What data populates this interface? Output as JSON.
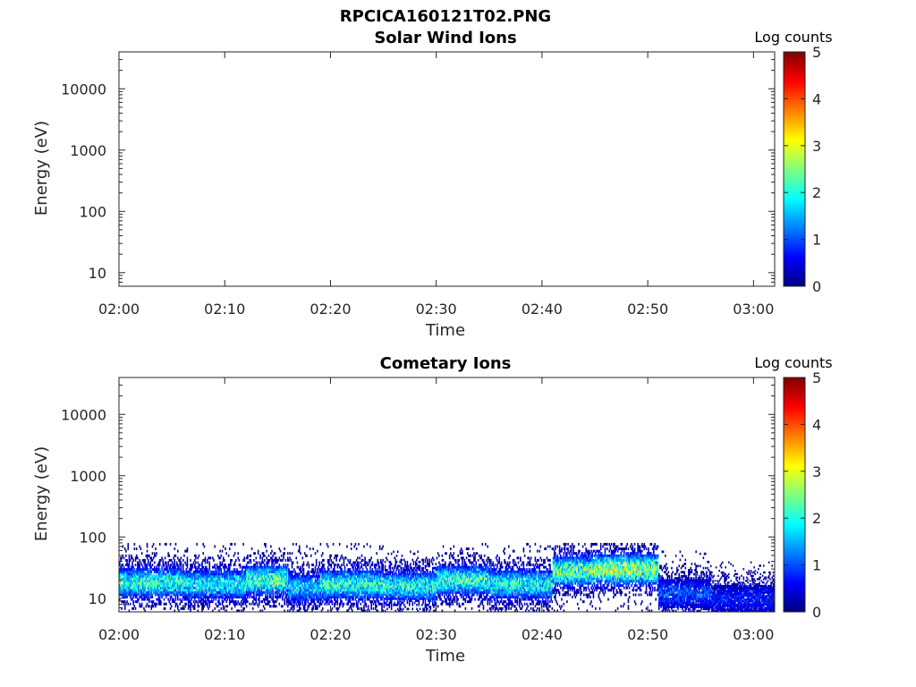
{
  "figure_title": "RPCICA160121T02.PNG",
  "chart_data": [
    {
      "type": "heatmap",
      "title": "Solar Wind Ions",
      "xlabel": "Time",
      "ylabel": "Energy (eV)",
      "x_ticks": [
        "02:00",
        "02:10",
        "02:20",
        "02:30",
        "02:40",
        "02:50",
        "03:00"
      ],
      "x_range_minutes": [
        0,
        62
      ],
      "y_scale": "log",
      "y_ticks": [
        10,
        100,
        1000,
        10000
      ],
      "y_tick_labels": [
        "10",
        "100",
        "1000",
        "10000"
      ],
      "y_range": [
        6,
        40000
      ],
      "colorbar": {
        "label": "Log counts",
        "ticks": [
          "0",
          "1",
          "2",
          "3",
          "4",
          "5"
        ],
        "range": [
          0,
          5
        ],
        "colormap": "jet"
      },
      "cells": []
    },
    {
      "type": "heatmap",
      "title": "Cometary Ions",
      "xlabel": "Time",
      "ylabel": "Energy (eV)",
      "x_ticks": [
        "02:00",
        "02:10",
        "02:20",
        "02:30",
        "02:40",
        "02:50",
        "03:00"
      ],
      "x_range_minutes": [
        0,
        62
      ],
      "y_scale": "log",
      "y_ticks": [
        10,
        100,
        1000,
        10000
      ],
      "y_tick_labels": [
        "10",
        "100",
        "1000",
        "10000"
      ],
      "y_range": [
        6,
        40000
      ],
      "colorbar": {
        "label": "Log counts",
        "ticks": [
          "0",
          "1",
          "2",
          "3",
          "4",
          "5"
        ],
        "range": [
          0,
          5
        ],
        "colormap": "jet"
      },
      "energy_band_eV": [
        6,
        80
      ],
      "activity_segments": [
        {
          "time_minutes": [
            0,
            6
          ],
          "peak_energy_eV": 18,
          "peak_log_counts": 2.2,
          "max_energy_eV": 80
        },
        {
          "time_minutes": [
            6,
            12
          ],
          "peak_energy_eV": 17,
          "peak_log_counts": 2.0,
          "max_energy_eV": 80
        },
        {
          "time_minutes": [
            12,
            16
          ],
          "peak_energy_eV": 20,
          "peak_log_counts": 2.4,
          "max_energy_eV": 80
        },
        {
          "time_minutes": [
            16,
            19
          ],
          "peak_energy_eV": 15,
          "peak_log_counts": 1.7,
          "max_energy_eV": 80
        },
        {
          "time_minutes": [
            19,
            25
          ],
          "peak_energy_eV": 17,
          "peak_log_counts": 2.2,
          "max_energy_eV": 80
        },
        {
          "time_minutes": [
            25,
            30
          ],
          "peak_energy_eV": 16,
          "peak_log_counts": 2.1,
          "max_energy_eV": 60
        },
        {
          "time_minutes": [
            30,
            35
          ],
          "peak_energy_eV": 20,
          "peak_log_counts": 2.3,
          "max_energy_eV": 80
        },
        {
          "time_minutes": [
            35,
            41
          ],
          "peak_energy_eV": 17,
          "peak_log_counts": 2.1,
          "max_energy_eV": 80
        },
        {
          "time_minutes": [
            41,
            45
          ],
          "peak_energy_eV": 28,
          "peak_log_counts": 2.6,
          "max_energy_eV": 80
        },
        {
          "time_minutes": [
            45,
            51
          ],
          "peak_energy_eV": 30,
          "peak_log_counts": 2.9,
          "max_energy_eV": 80
        },
        {
          "time_minutes": [
            51,
            56
          ],
          "peak_energy_eV": 12,
          "peak_log_counts": 1.1,
          "max_energy_eV": 60
        },
        {
          "time_minutes": [
            56,
            62
          ],
          "peak_energy_eV": 10,
          "peak_log_counts": 0.8,
          "max_energy_eV": 40
        }
      ]
    }
  ]
}
